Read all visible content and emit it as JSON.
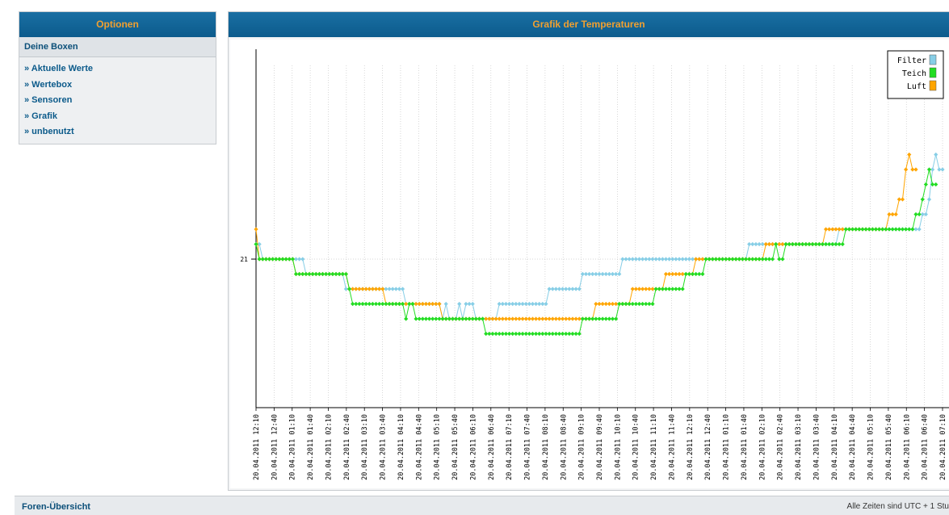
{
  "sidebar": {
    "title": "Optionen",
    "subtitle": "Deine Boxen",
    "items": [
      {
        "label": "» Aktuelle Werte"
      },
      {
        "label": "» Wertebox"
      },
      {
        "label": "» Sensoren"
      },
      {
        "label": "» Grafik"
      },
      {
        "label": "» unbenutzt"
      }
    ]
  },
  "panel": {
    "title": "Grafik der Temperaturen"
  },
  "footer": {
    "left": "Foren-Übersicht",
    "right": "Alle Zeiten sind UTC + 1 Stu"
  },
  "chart_data": {
    "type": "line",
    "title": "Grafik der Temperaturen",
    "xlabel": "",
    "ylabel": "",
    "y_tick_labels": [
      "21"
    ],
    "grid": true,
    "legend_position": "top-right",
    "colors": {
      "Filter": "#87cee6",
      "Teich": "#22dd22",
      "Luft": "#ffa500"
    },
    "x_ticks": [
      "20.04.2011 12:10",
      "20.04.2011 12:40",
      "20.04.2011 01:10",
      "20.04.2011 01:40",
      "20.04.2011 02:10",
      "20.04.2011 02:40",
      "20.04.2011 03:10",
      "20.04.2011 03:40",
      "20.04.2011 04:10",
      "20.04.2011 04:40",
      "20.04.2011 05:10",
      "20.04.2011 05:40",
      "20.04.2011 06:10",
      "20.04.2011 06:40",
      "20.04.2011 07:10",
      "20.04.2011 07:40",
      "20.04.2011 08:10",
      "20.04.2011 08:40",
      "20.04.2011 09:10",
      "20.04.2011 09:40",
      "20.04.2011 10:10",
      "20.04.2011 10:40",
      "20.04.2011 11:10",
      "20.04.2011 11:40",
      "20.04.2011 12:10",
      "20.04.2011 12:40",
      "20.04.2011 01:10",
      "20.04.2011 01:40",
      "20.04.2011 02:10",
      "20.04.2011 02:40",
      "20.04.2011 03:10",
      "20.04.2011 03:40",
      "20.04.2011 04:10",
      "20.04.2011 04:40",
      "20.04.2011 05:10",
      "20.04.2011 05:40",
      "20.04.2011 06:10",
      "20.04.2011 06:40",
      "20.04.2011 07:10"
    ],
    "series": [
      {
        "name": "Filter",
        "values": [
          21.1,
          21.1,
          21.0,
          21.0,
          21.0,
          21.0,
          21.0,
          21.0,
          21.0,
          21.0,
          21.0,
          21.0,
          21.0,
          21.0,
          21.0,
          20.9,
          20.9,
          20.9,
          20.9,
          20.9,
          20.9,
          20.9,
          20.9,
          20.9,
          20.9,
          20.9,
          20.9,
          20.8,
          20.8,
          20.8,
          20.8,
          20.8,
          20.8,
          20.8,
          20.8,
          20.8,
          20.8,
          20.8,
          20.8,
          20.8,
          20.8,
          20.8,
          20.8,
          20.8,
          20.8,
          20.7,
          20.7,
          20.7,
          20.7,
          20.7,
          20.7,
          20.7,
          20.7,
          20.7,
          20.7,
          20.7,
          20.6,
          20.7,
          20.6,
          20.6,
          20.6,
          20.7,
          20.6,
          20.7,
          20.7,
          20.7,
          20.6,
          20.6,
          20.6,
          20.6,
          20.6,
          20.6,
          20.6,
          20.7,
          20.7,
          20.7,
          20.7,
          20.7,
          20.7,
          20.7,
          20.7,
          20.7,
          20.7,
          20.7,
          20.7,
          20.7,
          20.7,
          20.7,
          20.8,
          20.8,
          20.8,
          20.8,
          20.8,
          20.8,
          20.8,
          20.8,
          20.8,
          20.8,
          20.9,
          20.9,
          20.9,
          20.9,
          20.9,
          20.9,
          20.9,
          20.9,
          20.9,
          20.9,
          20.9,
          20.9,
          21.0,
          21.0,
          21.0,
          21.0,
          21.0,
          21.0,
          21.0,
          21.0,
          21.0,
          21.0,
          21.0,
          21.0,
          21.0,
          21.0,
          21.0,
          21.0,
          21.0,
          21.0,
          21.0,
          21.0,
          21.0,
          21.0,
          21.0,
          21.0,
          21.0,
          21.0,
          21.0,
          21.0,
          21.0,
          21.0,
          21.0,
          21.0,
          21.0,
          21.0,
          21.0,
          21.0,
          21.0,
          21.0,
          21.1,
          21.1,
          21.1,
          21.1,
          21.1,
          21.1,
          21.1,
          21.1,
          21.1,
          21.1,
          21.1,
          21.1,
          21.1,
          21.1,
          21.1,
          21.1,
          21.1,
          21.1,
          21.1,
          21.1,
          21.1,
          21.1,
          21.1,
          21.1,
          21.1,
          21.1,
          21.1,
          21.2,
          21.2,
          21.2,
          21.2,
          21.2,
          21.2,
          21.2,
          21.2,
          21.2,
          21.2,
          21.2,
          21.2,
          21.2,
          21.2,
          21.2,
          21.2,
          21.2,
          21.2,
          21.2,
          21.2,
          21.2,
          21.2,
          21.2,
          21.2,
          21.2,
          21.3,
          21.3,
          21.4,
          21.6,
          21.7,
          21.6,
          21.6
        ]
      },
      {
        "name": "Teich",
        "values": [
          21.1,
          21.0,
          21.0,
          21.0,
          21.0,
          21.0,
          21.0,
          21.0,
          21.0,
          21.0,
          21.0,
          21.0,
          20.9,
          20.9,
          20.9,
          20.9,
          20.9,
          20.9,
          20.9,
          20.9,
          20.9,
          20.9,
          20.9,
          20.9,
          20.9,
          20.9,
          20.9,
          20.9,
          20.8,
          20.7,
          20.7,
          20.7,
          20.7,
          20.7,
          20.7,
          20.7,
          20.7,
          20.7,
          20.7,
          20.7,
          20.7,
          20.7,
          20.7,
          20.7,
          20.7,
          20.6,
          20.7,
          20.7,
          20.6,
          20.6,
          20.6,
          20.6,
          20.6,
          20.6,
          20.6,
          20.6,
          20.6,
          20.6,
          20.6,
          20.6,
          20.6,
          20.6,
          20.6,
          20.6,
          20.6,
          20.6,
          20.6,
          20.6,
          20.6,
          20.5,
          20.5,
          20.5,
          20.5,
          20.5,
          20.5,
          20.5,
          20.5,
          20.5,
          20.5,
          20.5,
          20.5,
          20.5,
          20.5,
          20.5,
          20.5,
          20.5,
          20.5,
          20.5,
          20.5,
          20.5,
          20.5,
          20.5,
          20.5,
          20.5,
          20.5,
          20.5,
          20.5,
          20.5,
          20.6,
          20.6,
          20.6,
          20.6,
          20.6,
          20.6,
          20.6,
          20.6,
          20.6,
          20.6,
          20.6,
          20.7,
          20.7,
          20.7,
          20.7,
          20.7,
          20.7,
          20.7,
          20.7,
          20.7,
          20.7,
          20.7,
          20.8,
          20.8,
          20.8,
          20.8,
          20.8,
          20.8,
          20.8,
          20.8,
          20.8,
          20.9,
          20.9,
          20.9,
          20.9,
          20.9,
          20.9,
          21.0,
          21.0,
          21.0,
          21.0,
          21.0,
          21.0,
          21.0,
          21.0,
          21.0,
          21.0,
          21.0,
          21.0,
          21.0,
          21.0,
          21.0,
          21.0,
          21.0,
          21.0,
          21.0,
          21.0,
          21.0,
          21.1,
          21.0,
          21.0,
          21.1,
          21.1,
          21.1,
          21.1,
          21.1,
          21.1,
          21.1,
          21.1,
          21.1,
          21.1,
          21.1,
          21.1,
          21.1,
          21.1,
          21.1,
          21.1,
          21.1,
          21.1,
          21.2,
          21.2,
          21.2,
          21.2,
          21.2,
          21.2,
          21.2,
          21.2,
          21.2,
          21.2,
          21.2,
          21.2,
          21.2,
          21.2,
          21.2,
          21.2,
          21.2,
          21.2,
          21.2,
          21.2,
          21.2,
          21.3,
          21.3,
          21.4,
          21.5,
          21.6,
          21.5,
          21.5
        ]
      },
      {
        "name": "Luft",
        "values": [
          21.2,
          21.0,
          21.0,
          21.0,
          21.0,
          21.0,
          21.0,
          21.0,
          21.0,
          21.0,
          21.0,
          21.0,
          20.9,
          20.9,
          20.9,
          20.9,
          20.9,
          20.9,
          20.9,
          20.9,
          20.9,
          20.9,
          20.9,
          20.9,
          20.9,
          20.9,
          20.9,
          20.9,
          20.8,
          20.8,
          20.8,
          20.8,
          20.8,
          20.8,
          20.8,
          20.8,
          20.8,
          20.8,
          20.8,
          20.7,
          20.7,
          20.7,
          20.7,
          20.7,
          20.7,
          20.7,
          20.7,
          20.7,
          20.7,
          20.7,
          20.7,
          20.7,
          20.7,
          20.7,
          20.7,
          20.7,
          20.6,
          20.6,
          20.6,
          20.6,
          20.6,
          20.6,
          20.6,
          20.6,
          20.6,
          20.6,
          20.6,
          20.6,
          20.6,
          20.6,
          20.6,
          20.6,
          20.6,
          20.6,
          20.6,
          20.6,
          20.6,
          20.6,
          20.6,
          20.6,
          20.6,
          20.6,
          20.6,
          20.6,
          20.6,
          20.6,
          20.6,
          20.6,
          20.6,
          20.6,
          20.6,
          20.6,
          20.6,
          20.6,
          20.6,
          20.6,
          20.6,
          20.6,
          20.6,
          20.6,
          20.6,
          20.6,
          20.7,
          20.7,
          20.7,
          20.7,
          20.7,
          20.7,
          20.7,
          20.7,
          20.7,
          20.7,
          20.7,
          20.8,
          20.8,
          20.8,
          20.8,
          20.8,
          20.8,
          20.8,
          20.8,
          20.8,
          20.8,
          20.9,
          20.9,
          20.9,
          20.9,
          20.9,
          20.9,
          20.9,
          20.9,
          20.9,
          21.0,
          21.0,
          21.0,
          21.0,
          21.0,
          21.0,
          21.0,
          21.0,
          21.0,
          21.0,
          21.0,
          21.0,
          21.0,
          21.0,
          21.0,
          21.0,
          21.0,
          21.0,
          21.0,
          21.0,
          21.0,
          21.1,
          21.1,
          21.1,
          21.1,
          21.1,
          21.1,
          21.1,
          21.1,
          21.1,
          21.1,
          21.1,
          21.1,
          21.1,
          21.1,
          21.1,
          21.1,
          21.1,
          21.1,
          21.2,
          21.2,
          21.2,
          21.2,
          21.2,
          21.2,
          21.2,
          21.2,
          21.2,
          21.2,
          21.2,
          21.2,
          21.2,
          21.2,
          21.2,
          21.2,
          21.2,
          21.2,
          21.2,
          21.3,
          21.3,
          21.3,
          21.4,
          21.4,
          21.6,
          21.7,
          21.6,
          21.6
        ]
      }
    ]
  }
}
